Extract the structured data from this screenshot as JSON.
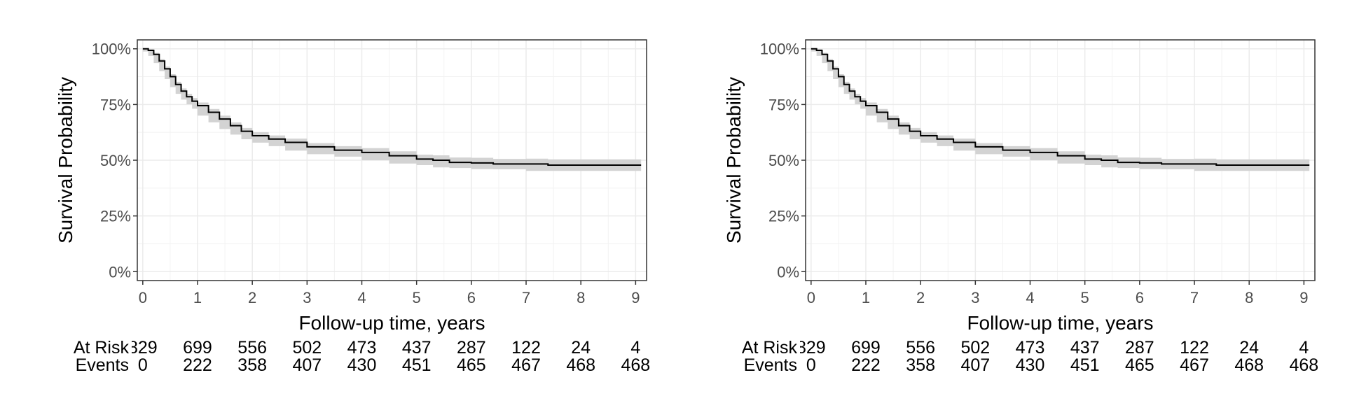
{
  "chart_data": [
    {
      "type": "line",
      "xlabel": "Follow-up time, years",
      "ylabel": "Survival Probability",
      "xlim": [
        -0.1,
        9.2
      ],
      "ylim": [
        0,
        1
      ],
      "x_ticks": [
        0,
        1,
        2,
        3,
        4,
        5,
        6,
        7,
        8,
        9
      ],
      "x_tick_labels": [
        "0",
        "1",
        "2",
        "3",
        "4",
        "5",
        "6",
        "7",
        "8",
        "9"
      ],
      "y_ticks": [
        0,
        0.25,
        0.5,
        0.75,
        1
      ],
      "y_tick_labels": [
        "0%",
        "25%",
        "50%",
        "75%",
        "100%"
      ],
      "grid": true,
      "confidence_band": true,
      "series": [
        {
          "x": [
            0,
            0.1,
            0.2,
            0.3,
            0.4,
            0.5,
            0.6,
            0.7,
            0.8,
            0.9,
            1.0,
            1.2,
            1.4,
            1.6,
            1.8,
            2.0,
            2.3,
            2.6,
            3.0,
            3.5,
            4.0,
            4.5,
            5.0,
            5.3,
            5.6,
            6.0,
            6.4,
            7.0,
            7.4,
            8.0,
            9.1
          ],
          "y": [
            1.0,
            0.993,
            0.975,
            0.945,
            0.91,
            0.875,
            0.84,
            0.81,
            0.785,
            0.765,
            0.745,
            0.715,
            0.685,
            0.655,
            0.63,
            0.61,
            0.595,
            0.58,
            0.56,
            0.545,
            0.535,
            0.52,
            0.505,
            0.5,
            0.49,
            0.488,
            0.483,
            0.483,
            0.478,
            0.478,
            0.478
          ],
          "lower": [
            1.0,
            0.988,
            0.968,
            0.936,
            0.9,
            0.864,
            0.828,
            0.798,
            0.772,
            0.751,
            0.731,
            0.7,
            0.67,
            0.64,
            0.615,
            0.594,
            0.579,
            0.563,
            0.543,
            0.527,
            0.516,
            0.5,
            0.485,
            0.478,
            0.468,
            0.465,
            0.46,
            0.459,
            0.452,
            0.452,
            0.452
          ],
          "upper": [
            1.0,
            0.998,
            0.982,
            0.954,
            0.92,
            0.886,
            0.852,
            0.822,
            0.798,
            0.779,
            0.759,
            0.73,
            0.7,
            0.67,
            0.645,
            0.626,
            0.611,
            0.597,
            0.577,
            0.563,
            0.554,
            0.54,
            0.525,
            0.522,
            0.512,
            0.511,
            0.506,
            0.507,
            0.504,
            0.504,
            0.504
          ]
        }
      ],
      "risk_table": {
        "rows": [
          {
            "label": "At Risk",
            "values": [
              "829",
              "699",
              "556",
              "502",
              "473",
              "437",
              "287",
              "122",
              "24",
              "4"
            ]
          },
          {
            "label": "Events",
            "values": [
              "0",
              "222",
              "358",
              "407",
              "430",
              "451",
              "465",
              "467",
              "468",
              "468"
            ]
          }
        ]
      }
    },
    {
      "type": "line",
      "xlabel": "Follow-up time, years",
      "ylabel": "Survival Probability",
      "xlim": [
        -0.1,
        9.2
      ],
      "ylim": [
        0,
        1
      ],
      "x_ticks": [
        0,
        1,
        2,
        3,
        4,
        5,
        6,
        7,
        8,
        9
      ],
      "x_tick_labels": [
        "0",
        "1",
        "2",
        "3",
        "4",
        "5",
        "6",
        "7",
        "8",
        "9"
      ],
      "y_ticks": [
        0,
        0.25,
        0.5,
        0.75,
        1
      ],
      "y_tick_labels": [
        "0%",
        "25%",
        "50%",
        "75%",
        "100%"
      ],
      "grid": true,
      "confidence_band": true,
      "series": [
        {
          "x": [
            0,
            0.1,
            0.2,
            0.3,
            0.4,
            0.5,
            0.6,
            0.7,
            0.8,
            0.9,
            1.0,
            1.2,
            1.4,
            1.6,
            1.8,
            2.0,
            2.3,
            2.6,
            3.0,
            3.5,
            4.0,
            4.5,
            5.0,
            5.3,
            5.6,
            6.0,
            6.4,
            7.0,
            7.4,
            8.0,
            9.1
          ],
          "y": [
            1.0,
            0.993,
            0.975,
            0.945,
            0.91,
            0.875,
            0.84,
            0.81,
            0.785,
            0.765,
            0.745,
            0.715,
            0.685,
            0.655,
            0.63,
            0.61,
            0.595,
            0.58,
            0.56,
            0.545,
            0.535,
            0.52,
            0.505,
            0.5,
            0.49,
            0.488,
            0.483,
            0.483,
            0.478,
            0.478,
            0.478
          ],
          "lower": [
            1.0,
            0.988,
            0.968,
            0.936,
            0.9,
            0.864,
            0.828,
            0.798,
            0.772,
            0.751,
            0.731,
            0.7,
            0.67,
            0.64,
            0.615,
            0.594,
            0.579,
            0.563,
            0.543,
            0.527,
            0.516,
            0.5,
            0.485,
            0.478,
            0.468,
            0.465,
            0.46,
            0.459,
            0.452,
            0.452,
            0.452
          ],
          "upper": [
            1.0,
            0.998,
            0.982,
            0.954,
            0.92,
            0.886,
            0.852,
            0.822,
            0.798,
            0.779,
            0.759,
            0.73,
            0.7,
            0.67,
            0.645,
            0.626,
            0.611,
            0.597,
            0.577,
            0.563,
            0.554,
            0.54,
            0.525,
            0.522,
            0.512,
            0.511,
            0.506,
            0.507,
            0.504,
            0.504,
            0.504
          ]
        }
      ],
      "risk_table": {
        "rows": [
          {
            "label": "At Risk",
            "values": [
              "829",
              "699",
              "556",
              "502",
              "473",
              "437",
              "287",
              "122",
              "24",
              "4"
            ]
          },
          {
            "label": "Events",
            "values": [
              "0",
              "222",
              "358",
              "407",
              "430",
              "451",
              "465",
              "467",
              "468",
              "468"
            ]
          }
        ]
      }
    }
  ]
}
